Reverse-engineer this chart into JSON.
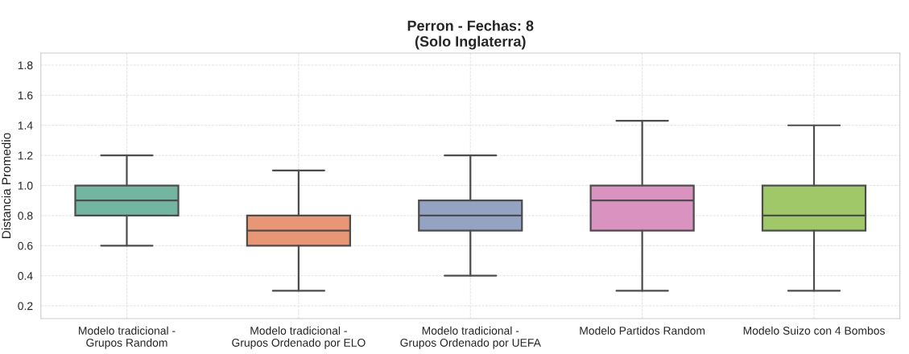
{
  "chart_data": {
    "type": "box",
    "title": "Perron - Fechas: 8\n(Solo Inglaterra)",
    "ylabel": "Distancia Promedio",
    "categories": [
      "Modelo tradicional -\nGrupos Random",
      "Modelo tradicional -\nGrupos Ordenado por ELO",
      "Modelo tradicional -\nGrupos Ordenado por UEFA",
      "Modelo Partidos Random",
      "Modelo Suizo con 4 Bombos"
    ],
    "colors": [
      "#72b6a1",
      "#e99675",
      "#95a3c3",
      "#da93c1",
      "#a0c868"
    ],
    "boxes": [
      {
        "low": 0.6,
        "q1": 0.8,
        "median": 0.9,
        "q3": 1.0,
        "high": 1.2
      },
      {
        "low": 0.3,
        "q1": 0.6,
        "median": 0.7,
        "q3": 0.8,
        "high": 1.1
      },
      {
        "low": 0.4,
        "q1": 0.7,
        "median": 0.8,
        "q3": 0.9,
        "high": 1.2
      },
      {
        "low": 0.3,
        "q1": 0.7,
        "median": 0.9,
        "q3": 1.0,
        "high": 1.43
      },
      {
        "low": 0.3,
        "q1": 0.7,
        "median": 0.8,
        "q3": 1.0,
        "high": 1.4
      }
    ],
    "ylim": [
      0.115,
      1.88
    ],
    "yticks": [
      0.2,
      0.4,
      0.6,
      0.8,
      {
        "value": 1.0,
        "label": "1.0"
      },
      1.2,
      1.4,
      1.6,
      1.8
    ],
    "grid": true
  }
}
